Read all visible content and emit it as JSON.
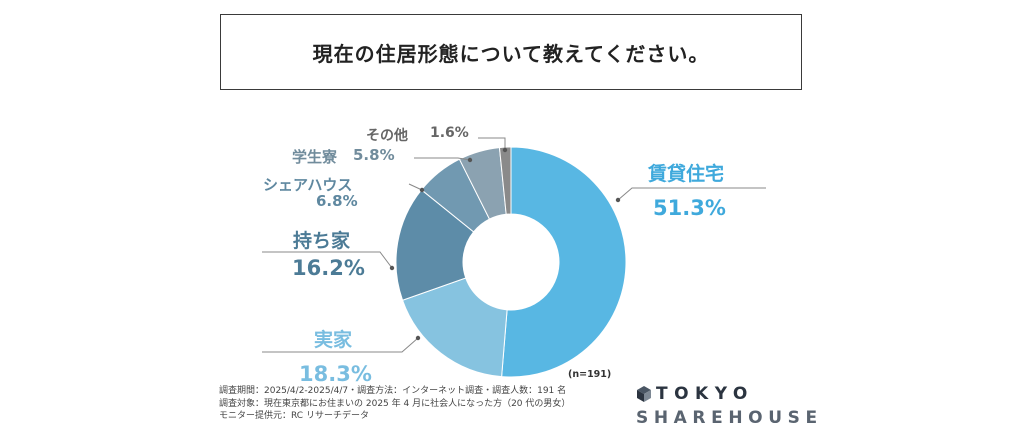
{
  "title": "現在の住居形態について教えてください。",
  "n_label": "(n=191)",
  "footnotes": [
    "調査期間：2025/4/2-2025/4/7・調査方法：インターネット調査・調査人数：191 名",
    "調査対象：現在東京都にお住まいの 2025 年 4 月に社会人になった方（20 代の男女）",
    "モニター提供元：RC リサーチデータ"
  ],
  "logo": {
    "line1": "TOKYO",
    "line2": "SHAREHOUSE"
  },
  "chart_data": {
    "type": "pie",
    "donut": true,
    "n": 191,
    "unit": "%",
    "categories": [
      "賃貸住宅",
      "実家",
      "持ち家",
      "シェアハウス",
      "学生寮",
      "その他"
    ],
    "values": [
      51.3,
      18.3,
      16.2,
      6.8,
      5.8,
      1.6
    ],
    "value_labels": [
      "51.3%",
      "18.3%",
      "16.2%",
      "6.8%",
      "5.8%",
      "1.6%"
    ],
    "colors": [
      "#58b7e3",
      "#86c3e0",
      "#5d8ca8",
      "#7199b1",
      "#8ba2b1",
      "#8a8a8a"
    ],
    "label_colors": [
      "#3fa9dc",
      "#79bde0",
      "#4c7b96",
      "#5f88a0",
      "#718c9c",
      "#666666"
    ]
  }
}
